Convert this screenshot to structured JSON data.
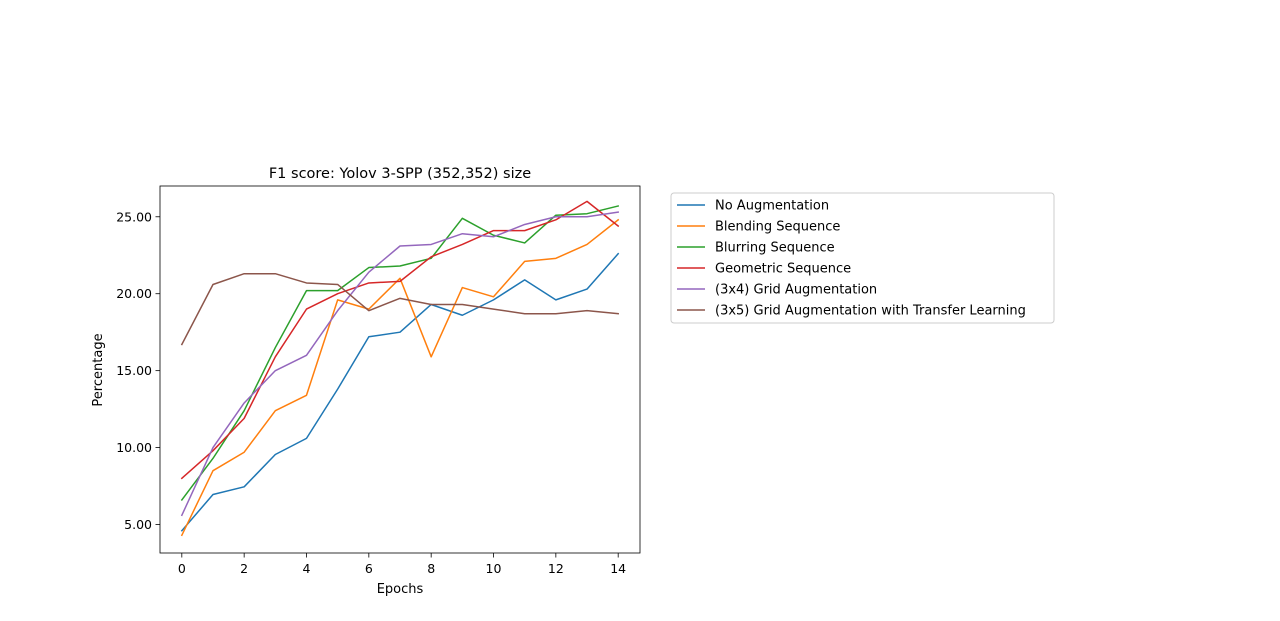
{
  "chart_data": {
    "type": "line",
    "title": "F1 score: Yolov 3-SPP (352,352) size",
    "xlabel": "Epochs",
    "ylabel": "Percentage",
    "xlim": [
      -0.7,
      14.7
    ],
    "ylim": [
      3.15,
      27.0
    ],
    "xticks": [
      0,
      2,
      4,
      6,
      8,
      10,
      12,
      14
    ],
    "xtick_labels": [
      "0",
      "2",
      "4",
      "6",
      "8",
      "10",
      "12",
      "14"
    ],
    "yticks": [
      5,
      10,
      15,
      20,
      25
    ],
    "ytick_labels": [
      "5.00",
      "10.00",
      "15.00",
      "20.00",
      "25.00"
    ],
    "grid": false,
    "legend_position": "outside-right-top",
    "x": [
      0,
      1,
      2,
      3,
      4,
      5,
      6,
      7,
      8,
      9,
      10,
      11,
      12,
      13,
      14
    ],
    "series": [
      {
        "name": "No Augmentation",
        "color": "#1f77b4",
        "values": [
          4.6,
          6.95,
          7.45,
          9.55,
          10.6,
          13.8,
          17.2,
          17.5,
          19.3,
          18.6,
          19.6,
          20.9,
          19.6,
          20.3,
          22.6
        ]
      },
      {
        "name": "Blending Sequence",
        "color": "#ff7f0e",
        "values": [
          4.3,
          8.5,
          9.7,
          12.4,
          13.4,
          19.6,
          19.0,
          21.0,
          15.9,
          20.4,
          19.8,
          22.1,
          22.3,
          23.2,
          24.8
        ]
      },
      {
        "name": "Blurring Sequence",
        "color": "#2ca02c",
        "values": [
          6.6,
          9.3,
          12.4,
          16.5,
          20.2,
          20.2,
          21.7,
          21.8,
          22.3,
          24.9,
          23.8,
          23.3,
          25.1,
          25.2,
          25.7
        ]
      },
      {
        "name": "Geometric Sequence",
        "color": "#d62728",
        "values": [
          8.0,
          9.8,
          11.9,
          15.9,
          19.0,
          20.0,
          20.7,
          20.8,
          22.4,
          23.2,
          24.1,
          24.1,
          24.8,
          26.0,
          24.4
        ]
      },
      {
        "name": "(3x4) Grid Augmentation",
        "color": "#9467bd",
        "values": [
          5.6,
          10.0,
          12.9,
          15.0,
          16.0,
          18.9,
          21.4,
          23.1,
          23.2,
          23.9,
          23.7,
          24.5,
          25.0,
          25.0,
          25.3
        ]
      },
      {
        "name": "(3x5) Grid Augmentation with Transfer Learning",
        "color": "#8c564b",
        "values": [
          16.7,
          20.6,
          21.3,
          21.3,
          20.7,
          20.6,
          18.9,
          19.7,
          19.3,
          19.3,
          19.0,
          18.7,
          18.7,
          18.9,
          18.7
        ]
      }
    ]
  }
}
